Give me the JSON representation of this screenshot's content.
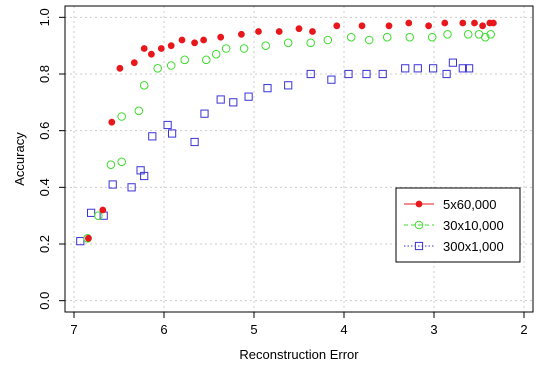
{
  "chart_data": {
    "type": "scatter",
    "xlabel": "Reconstruction Error",
    "ylabel": "Accuracy",
    "xlim": [
      7.1,
      1.9
    ],
    "ylim": [
      -0.04,
      1.04
    ],
    "x_reversed": true,
    "grid": true,
    "legend_position": "right",
    "x_ticks": [
      7,
      6,
      5,
      4,
      3,
      2
    ],
    "y_ticks": [
      0.0,
      0.2,
      0.4,
      0.6,
      0.8,
      1.0
    ],
    "x_tick_labels": [
      "7",
      "6",
      "5",
      "4",
      "3",
      "2"
    ],
    "y_tick_labels": [
      "0.0",
      "0.2",
      "0.4",
      "0.6",
      "0.8",
      "1.0"
    ],
    "series": [
      {
        "name": "5x60,000",
        "color": "#e8171c",
        "marker": "filled-circle",
        "legend_line": "solid",
        "points": [
          [
            6.84,
            0.22
          ],
          [
            6.68,
            0.32
          ],
          [
            6.58,
            0.63
          ],
          [
            6.49,
            0.82
          ],
          [
            6.33,
            0.84
          ],
          [
            6.22,
            0.89
          ],
          [
            6.14,
            0.87
          ],
          [
            6.03,
            0.89
          ],
          [
            5.92,
            0.9
          ],
          [
            5.8,
            0.92
          ],
          [
            5.66,
            0.91
          ],
          [
            5.56,
            0.92
          ],
          [
            5.37,
            0.93
          ],
          [
            5.14,
            0.94
          ],
          [
            4.95,
            0.95
          ],
          [
            4.72,
            0.95
          ],
          [
            4.5,
            0.96
          ],
          [
            4.35,
            0.95
          ],
          [
            4.08,
            0.97
          ],
          [
            3.8,
            0.97
          ],
          [
            3.5,
            0.97
          ],
          [
            3.28,
            0.98
          ],
          [
            3.06,
            0.97
          ],
          [
            2.88,
            0.98
          ],
          [
            2.68,
            0.98
          ],
          [
            2.55,
            0.98
          ],
          [
            2.46,
            0.97
          ],
          [
            2.38,
            0.98
          ],
          [
            2.34,
            0.98
          ]
        ]
      },
      {
        "name": "30x10,000",
        "color": "#3ddc2c",
        "marker": "open-circle",
        "legend_line": "dashed",
        "points": [
          [
            6.85,
            0.22
          ],
          [
            6.73,
            0.3
          ],
          [
            6.59,
            0.48
          ],
          [
            6.47,
            0.49
          ],
          [
            6.47,
            0.65
          ],
          [
            6.28,
            0.67
          ],
          [
            6.22,
            0.76
          ],
          [
            6.07,
            0.82
          ],
          [
            5.92,
            0.83
          ],
          [
            5.77,
            0.85
          ],
          [
            5.53,
            0.85
          ],
          [
            5.42,
            0.87
          ],
          [
            5.31,
            0.89
          ],
          [
            5.11,
            0.89
          ],
          [
            4.87,
            0.9
          ],
          [
            4.62,
            0.91
          ],
          [
            4.37,
            0.91
          ],
          [
            4.18,
            0.92
          ],
          [
            3.92,
            0.93
          ],
          [
            3.72,
            0.92
          ],
          [
            3.52,
            0.93
          ],
          [
            3.27,
            0.93
          ],
          [
            3.02,
            0.93
          ],
          [
            2.85,
            0.94
          ],
          [
            2.62,
            0.94
          ],
          [
            2.5,
            0.94
          ],
          [
            2.43,
            0.93
          ],
          [
            2.37,
            0.94
          ]
        ]
      },
      {
        "name": "300x1,000",
        "color": "#3a33d8",
        "marker": "open-square",
        "legend_line": "dotted",
        "points": [
          [
            6.93,
            0.21
          ],
          [
            6.81,
            0.31
          ],
          [
            6.67,
            0.3
          ],
          [
            6.57,
            0.41
          ],
          [
            6.36,
            0.4
          ],
          [
            6.26,
            0.46
          ],
          [
            6.22,
            0.44
          ],
          [
            6.13,
            0.58
          ],
          [
            5.96,
            0.62
          ],
          [
            5.91,
            0.59
          ],
          [
            5.66,
            0.56
          ],
          [
            5.55,
            0.66
          ],
          [
            5.37,
            0.71
          ],
          [
            5.23,
            0.7
          ],
          [
            5.06,
            0.72
          ],
          [
            4.85,
            0.75
          ],
          [
            4.62,
            0.76
          ],
          [
            4.37,
            0.8
          ],
          [
            4.14,
            0.78
          ],
          [
            3.95,
            0.8
          ],
          [
            3.75,
            0.8
          ],
          [
            3.57,
            0.8
          ],
          [
            3.32,
            0.82
          ],
          [
            3.18,
            0.82
          ],
          [
            3.01,
            0.82
          ],
          [
            2.86,
            0.8
          ],
          [
            2.79,
            0.84
          ],
          [
            2.68,
            0.82
          ],
          [
            2.61,
            0.82
          ]
        ]
      }
    ]
  }
}
